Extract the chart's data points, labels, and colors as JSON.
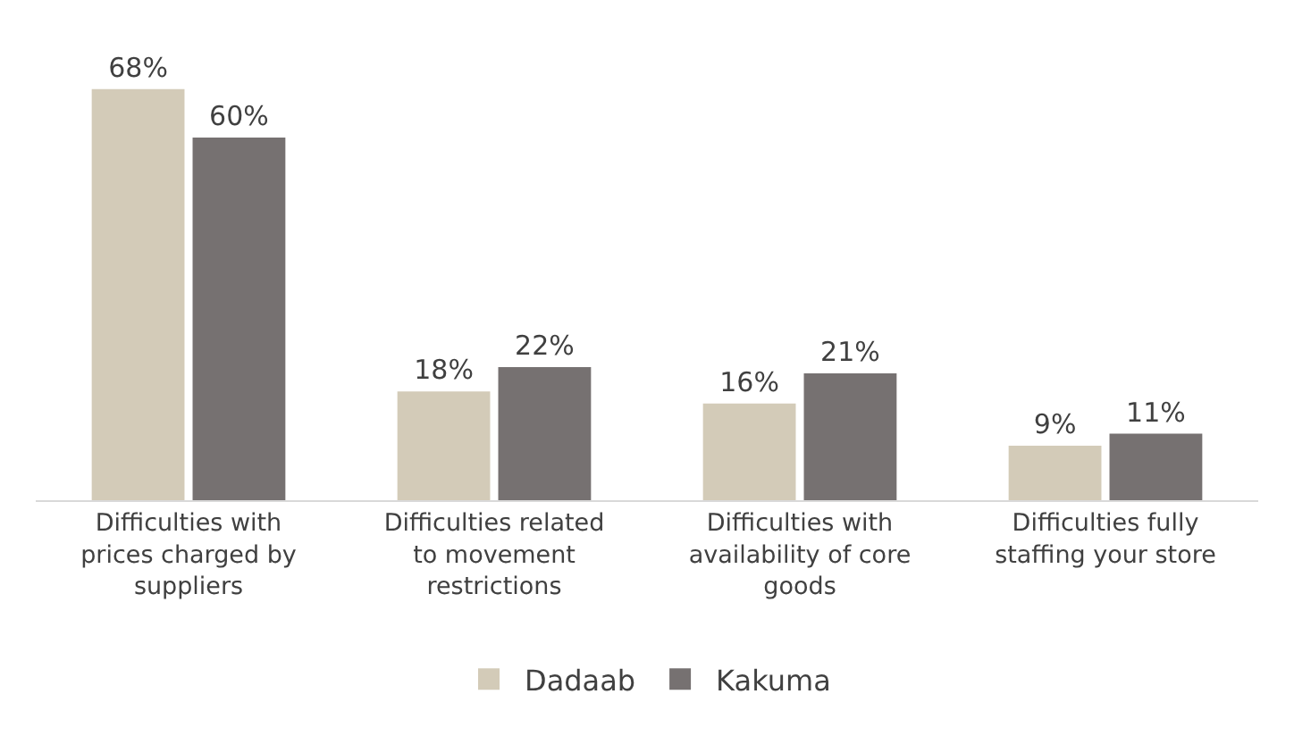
{
  "chart_data": {
    "type": "bar",
    "categories": [
      "Difficulties with prices charged by suppliers",
      "Difficulties related to movement restrictions",
      "Difficulties with availability of core goods",
      "Difficulties fully staffing your store"
    ],
    "series": [
      {
        "name": "Dadaab",
        "color": "#d3cbb8",
        "values": [
          68,
          18,
          16,
          9
        ],
        "value_labels": [
          "68%",
          "18%",
          "16%",
          "9%"
        ]
      },
      {
        "name": "Kakuma",
        "color": "#767171",
        "values": [
          60,
          22,
          21,
          11
        ],
        "value_labels": [
          "60%",
          "22%",
          "21%",
          "11%"
        ]
      }
    ],
    "legend": "bottom",
    "grid": false
  }
}
